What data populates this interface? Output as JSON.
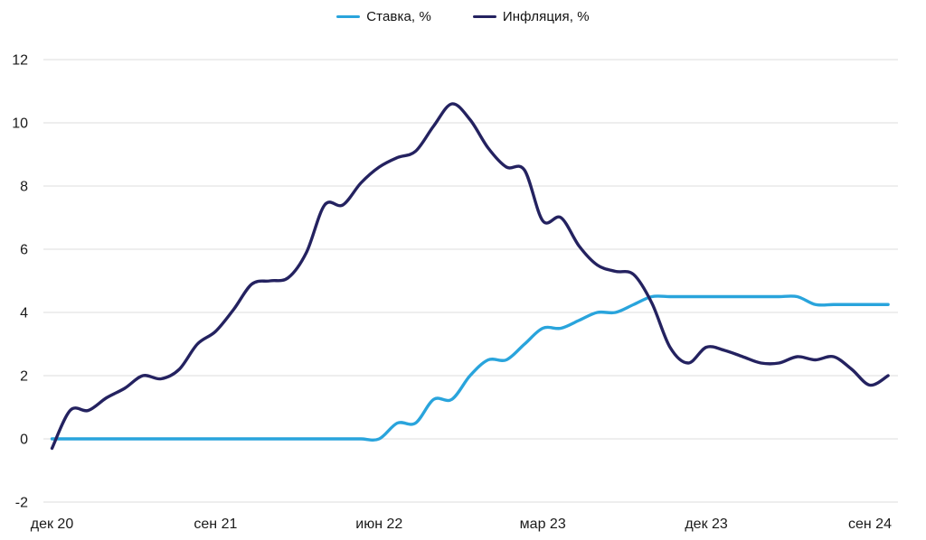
{
  "chart_data": {
    "type": "line",
    "title": "",
    "x": [
      "2020-12",
      "2021-01",
      "2021-02",
      "2021-03",
      "2021-04",
      "2021-05",
      "2021-06",
      "2021-07",
      "2021-08",
      "2021-09",
      "2021-10",
      "2021-11",
      "2021-12",
      "2022-01",
      "2022-02",
      "2022-03",
      "2022-04",
      "2022-05",
      "2022-06",
      "2022-07",
      "2022-08",
      "2022-09",
      "2022-10",
      "2022-11",
      "2022-12",
      "2023-01",
      "2023-02",
      "2023-03",
      "2023-04",
      "2023-05",
      "2023-06",
      "2023-07",
      "2023-08",
      "2023-09",
      "2023-10",
      "2023-11",
      "2023-12",
      "2024-01",
      "2024-02",
      "2024-03",
      "2024-04",
      "2024-05",
      "2024-06",
      "2024-07",
      "2024-08",
      "2024-09",
      "2024-10"
    ],
    "x_tick_labels": [
      {
        "label": "дек 20",
        "index": 0
      },
      {
        "label": "сен 21",
        "index": 9
      },
      {
        "label": "июн 22",
        "index": 18
      },
      {
        "label": "мар 23",
        "index": 27
      },
      {
        "label": "дек 23",
        "index": 36
      },
      {
        "label": "сен 24",
        "index": 45
      }
    ],
    "y_ticks": [
      -2,
      0,
      2,
      4,
      6,
      8,
      10,
      12
    ],
    "ylim": [
      -2,
      12
    ],
    "grid": "horizontal",
    "legend_position": "top-center",
    "text_color": "#1a1a1a",
    "grid_color": "#dcdcdc",
    "series": [
      {
        "name": "Ставка, %",
        "color": "#29a4dc",
        "values": [
          0,
          0,
          0,
          0,
          0,
          0,
          0,
          0,
          0,
          0,
          0,
          0,
          0,
          0,
          0,
          0,
          0,
          0,
          0,
          0.5,
          0.5,
          1.25,
          1.25,
          2.0,
          2.5,
          2.5,
          3.0,
          3.5,
          3.5,
          3.75,
          4.0,
          4.0,
          4.25,
          4.5,
          4.5,
          4.5,
          4.5,
          4.5,
          4.5,
          4.5,
          4.5,
          4.5,
          4.25,
          4.25,
          4.25,
          4.25,
          4.25
        ]
      },
      {
        "name": "Инфляция, %",
        "color": "#242260",
        "values": [
          -0.3,
          0.9,
          0.9,
          1.3,
          1.6,
          2.0,
          1.9,
          2.2,
          3.0,
          3.4,
          4.1,
          4.9,
          5.0,
          5.1,
          5.9,
          7.4,
          7.4,
          8.1,
          8.6,
          8.9,
          9.1,
          9.9,
          10.6,
          10.1,
          9.2,
          8.6,
          8.5,
          6.9,
          7.0,
          6.1,
          5.5,
          5.3,
          5.2,
          4.3,
          2.9,
          2.4,
          2.9,
          2.8,
          2.6,
          2.4,
          2.4,
          2.6,
          2.5,
          2.6,
          2.2,
          1.7,
          2.0
        ]
      }
    ]
  }
}
